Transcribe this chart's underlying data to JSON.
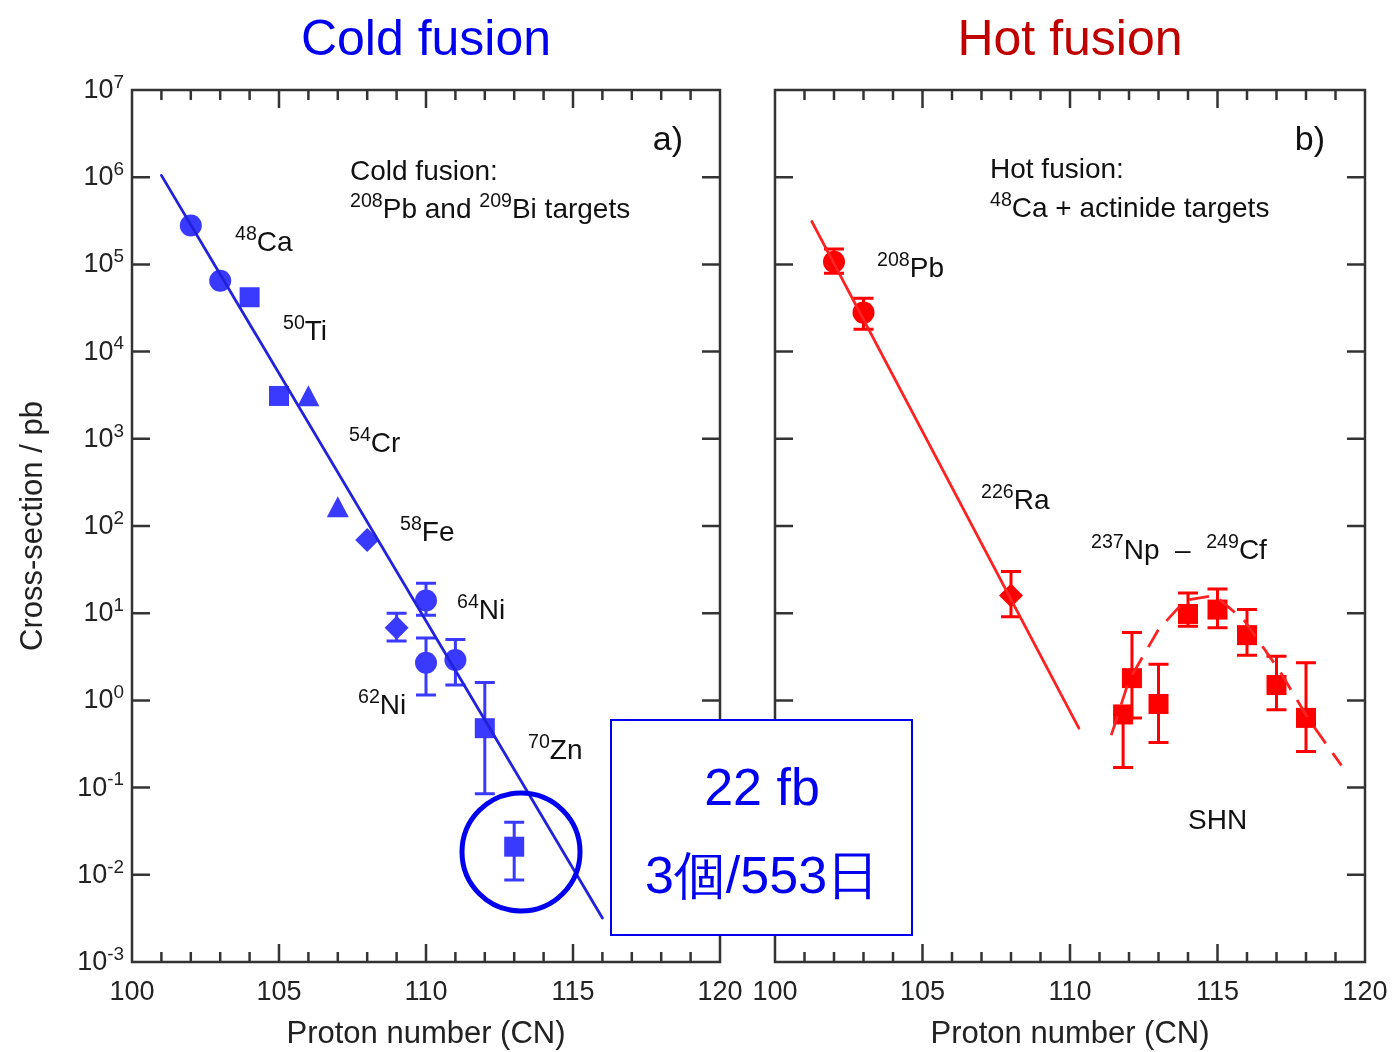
{
  "chart_data": [
    {
      "type": "scatter",
      "title": "Cold fusion",
      "xlabel": "Proton number (CN)",
      "ylabel": "Cross-section / pb",
      "log": "y",
      "xlim": [
        100,
        120
      ],
      "ylim": [
        0.001,
        10000000
      ],
      "xticks": [
        100,
        105,
        110,
        115,
        120,
        {
          "value": 101,
          "label": null
        },
        {
          "value": 102,
          "label": null
        },
        {
          "value": 103,
          "label": null
        },
        {
          "value": 104,
          "label": null
        },
        {
          "value": 106,
          "label": null
        },
        {
          "value": 107,
          "label": null
        },
        {
          "value": 108,
          "label": null
        },
        {
          "value": 109,
          "label": null
        },
        {
          "value": 111,
          "label": null
        },
        {
          "value": 112,
          "label": null
        },
        {
          "value": 113,
          "label": null
        },
        {
          "value": 114,
          "label": null
        },
        {
          "value": 116,
          "label": null
        },
        {
          "value": 117,
          "label": null
        },
        {
          "value": 118,
          "label": null
        },
        {
          "value": 119,
          "label": null
        }
      ],
      "yticks": [
        {
          "value": 0.001,
          "label": "10$^{-3}$"
        },
        {
          "value": 0.01,
          "label": "10$^{-2}$"
        },
        {
          "value": 0.1,
          "label": "10$^{-1}$"
        },
        {
          "value": 1,
          "label": "10$^{0}$"
        },
        {
          "value": 10,
          "label": "10$^{1}$"
        },
        {
          "value": 100,
          "label": "10$^{2}$"
        },
        {
          "value": 1000,
          "label": "10$^{3}$"
        },
        {
          "value": 10000,
          "label": "10$^{4}$"
        },
        {
          "value": 100000,
          "label": "10$^{5}$"
        },
        {
          "value": 1000000,
          "label": "10$^{6}$"
        },
        {
          "value": 10000000,
          "label": "10$^{7}$"
        }
      ],
      "series": [
        {
          "marker": "circle",
          "color": "#3a3aff",
          "x": [
            102,
            103,
            110
          ],
          "values": [
            280000,
            65000,
            14
          ],
          "errors": [
            null,
            null,
            [
              9.5,
              22
            ]
          ]
        },
        {
          "marker": "square",
          "color": "#3a3aff",
          "x": [
            104,
            105
          ],
          "values": [
            42000,
            3100
          ]
        },
        {
          "marker": "triangle",
          "color": "#3a3aff",
          "x": [
            106,
            107
          ],
          "values": [
            3000,
            160
          ]
        },
        {
          "marker": "diamond",
          "color": "#3a3aff",
          "x": [
            108,
            109
          ],
          "values": [
            69,
            6.8
          ],
          "errors": [
            null,
            [
              4.8,
              10
            ]
          ]
        },
        {
          "marker": "circle",
          "color": "#3a3aff",
          "x": [
            110,
            111
          ],
          "values": [
            2.7,
            2.9
          ],
          "errors": [
            [
              1.15,
              5.2
            ],
            [
              1.5,
              5
            ]
          ]
        },
        {
          "marker": "square",
          "color": "#3a3aff",
          "x": [
            112,
            113
          ],
          "values": [
            0.48,
            0.021
          ],
          "errors": [
            [
              0.085,
              1.6
            ],
            [
              0.0087,
              0.04
            ]
          ]
        },
        {
          "type": "line",
          "line_style": "solid",
          "color": "#2222dd",
          "x": [
            101,
            116
          ],
          "values": [
            1050000,
            0.0032
          ]
        }
      ],
      "annotations": [
        "a)",
        "Cold fusion:",
        "$^{208}$Pb and $^{209}$Bi targets",
        "22 fb",
        "3個/553日",
        "$^{48}$Ca",
        "$^{50}$Ti",
        "$^{54}$Cr",
        "$^{58}$Fe",
        "$^{64}$Ni",
        "$^{62}$Ni",
        "$^{70}$Zn"
      ]
    },
    {
      "type": "scatter",
      "title": "Hot fusion",
      "xlabel": "Proton number (CN)",
      "log": "y",
      "tick_labels": "x",
      "xlim": [
        100,
        120
      ],
      "ylim": [
        0.001,
        10000000
      ],
      "xticks": [
        100,
        105,
        110,
        115,
        120,
        {
          "value": 101,
          "label": null
        },
        {
          "value": 102,
          "label": null
        },
        {
          "value": 103,
          "label": null
        },
        {
          "value": 104,
          "label": null
        },
        {
          "value": 106,
          "label": null
        },
        {
          "value": 107,
          "label": null
        },
        {
          "value": 108,
          "label": null
        },
        {
          "value": 109,
          "label": null
        },
        {
          "value": 111,
          "label": null
        },
        {
          "value": 112,
          "label": null
        },
        {
          "value": 113,
          "label": null
        },
        {
          "value": 114,
          "label": null
        },
        {
          "value": 116,
          "label": null
        },
        {
          "value": 117,
          "label": null
        },
        {
          "value": 118,
          "label": null
        },
        {
          "value": 119,
          "label": null
        }
      ],
      "yticks": [
        {
          "value": 0.001,
          "label": null
        },
        {
          "value": 0.01,
          "label": null
        },
        {
          "value": 0.1,
          "label": null
        },
        {
          "value": 1,
          "label": null
        },
        {
          "value": 10,
          "label": null
        },
        {
          "value": 100,
          "label": null
        },
        {
          "value": 1000,
          "label": null
        },
        {
          "value": 10000,
          "label": null
        },
        {
          "value": 100000,
          "label": null
        },
        {
          "value": 1000000,
          "label": null
        },
        {
          "value": 10000000,
          "label": null
        }
      ],
      "series": [
        {
          "marker": "circle",
          "color": "#ff0000",
          "x": [
            102,
            103
          ],
          "values": [
            107000,
            28000
          ],
          "errors": [
            [
              79000,
              150000
            ],
            [
              18000,
              41000
            ]
          ]
        },
        {
          "marker": "diamond",
          "color": "#ff0000",
          "x": [
            108
          ],
          "values": [
            16
          ],
          "errors": [
            [
              9.1,
              30
            ]
          ]
        },
        {
          "marker": "square",
          "color": "#ff0000",
          "x": [
            111.8,
            112.1,
            113,
            114,
            115,
            116,
            117,
            118
          ],
          "values": [
            0.69,
            1.8,
            0.91,
            9.8,
            11,
            5.6,
            1.5,
            0.63
          ],
          "errors": [
            [
              0.17,
              0.69
            ],
            [
              0.63,
              6
            ],
            [
              0.33,
              2.6
            ],
            [
              7.1,
              17
            ],
            [
              6.8,
              19
            ],
            [
              3.3,
              11
            ],
            [
              0.78,
              3.2
            ],
            [
              0.26,
              2.7
            ]
          ]
        },
        {
          "type": "line",
          "line_style": "solid",
          "color": "#ff2222",
          "x": [
            101.25,
            110.3
          ],
          "values": [
            310000,
            0.48
          ]
        },
        {
          "type": "line",
          "line_style": "dashed",
          "color": "#ff2222",
          "x": [
            111.4,
            112,
            113,
            113.9,
            114.9,
            115.9,
            117.1,
            118.1,
            119.2
          ],
          "values": [
            0.4,
            1.7,
            6.5,
            14,
            16,
            8.3,
            2.2,
            0.6,
            0.18
          ]
        }
      ],
      "annotations": [
        "b)",
        "Hot fusion:",
        "$^{48}$Ca + actinide targets",
        "$^{208}$Pb",
        "$^{226}$Ra",
        "$^{237}$Np  –  $^{249}$Cf",
        "SHN"
      ]
    }
  ]
}
